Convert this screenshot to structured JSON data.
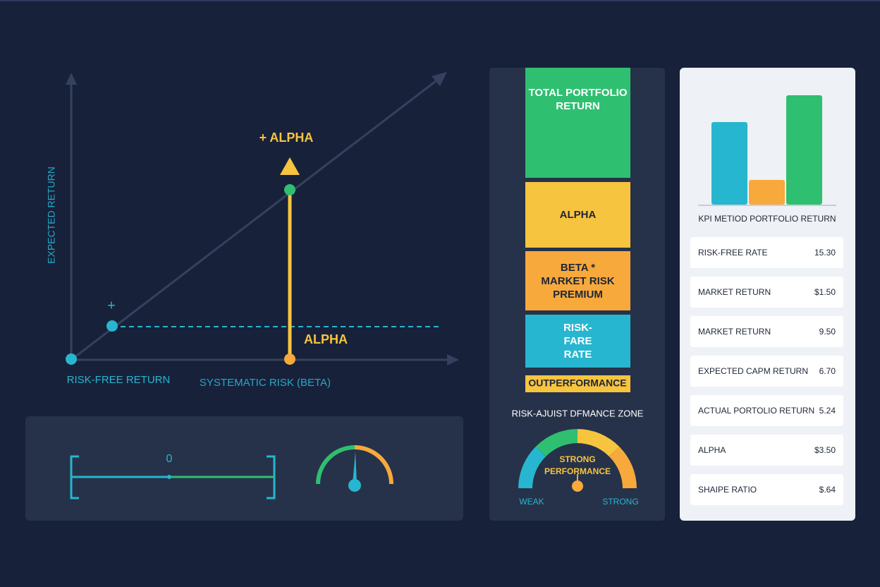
{
  "security_market_chart": {
    "axis_y_label": "EXPECTED RETURN",
    "axis_x_label": "SYSTEMATIC RISK (BETA)",
    "origin_label": "RISK-FREE RETURN",
    "plus_marker": "+",
    "alpha_top_label": "+ ALPHA",
    "alpha_label": "ALPHA"
  },
  "range_panel": {
    "center_label": "0"
  },
  "return_stack": {
    "segments": [
      "TOTAL PORTFOLIO RETURN",
      "ALPHA",
      "BETA * MARKET RISK PREMIUM",
      "RISK-FARE RATE"
    ],
    "outperformance_label": "OUTPERFORMANCE"
  },
  "performance_gauge": {
    "title": "RISK-AJUIST DFMANCE ZONE",
    "center_label": "STRONG PERFORMANCE",
    "left_label": "WEAK",
    "right_label": "STRONG"
  },
  "kpi_panel": {
    "title": "KPI METIOD PORTFOLIO RETURN",
    "rows": [
      [
        "RISK-FREE RATE",
        "15.30"
      ],
      [
        "MARKET RETURN",
        "$1.50"
      ],
      [
        "MARKET RETURN",
        "9.50"
      ],
      [
        "EXPECTED CAPM RETURN",
        "6.70"
      ],
      [
        "ACTUAL PORTOLIO RETURN",
        "5.24"
      ],
      [
        "ALPHA",
        "$3.50"
      ],
      [
        "SHAIPE RATIO",
        "$.64"
      ]
    ]
  }
}
